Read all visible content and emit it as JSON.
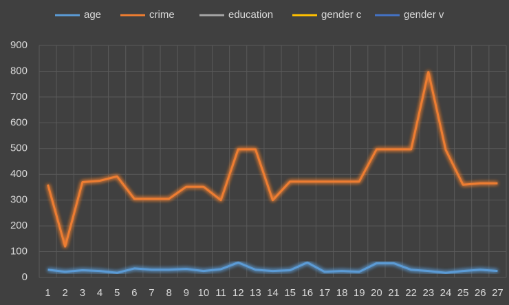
{
  "chart_data": {
    "type": "line",
    "categories": [
      "1",
      "2",
      "3",
      "4",
      "5",
      "6",
      "7",
      "8",
      "9",
      "10",
      "11",
      "12",
      "13",
      "14",
      "15",
      "16",
      "17",
      "18",
      "19",
      "20",
      "21",
      "22",
      "23",
      "24",
      "25",
      "26",
      "27"
    ],
    "series": [
      {
        "name": "age",
        "color": "#5b9bd5",
        "values": [
          30,
          22,
          28,
          25,
          18,
          35,
          30,
          30,
          33,
          25,
          32,
          58,
          30,
          25,
          28,
          58,
          22,
          25,
          22,
          55,
          55,
          30,
          25,
          18,
          25,
          30,
          25
        ]
      },
      {
        "name": "crime",
        "color": "#ed7d31",
        "values": [
          360,
          120,
          370,
          375,
          392,
          305,
          305,
          305,
          352,
          352,
          300,
          497,
          497,
          300,
          372,
          372,
          372,
          372,
          372,
          497,
          497,
          497,
          797,
          495,
          360,
          365,
          365
        ]
      },
      {
        "name": "education",
        "color": "#a5a5a5",
        "values": [
          12,
          12,
          12,
          12,
          12,
          12,
          12,
          12,
          12,
          12,
          12,
          12,
          12,
          12,
          12,
          12,
          12,
          12,
          12,
          12,
          12,
          12,
          12,
          12,
          12,
          12,
          12
        ]
      },
      {
        "name": "gender c",
        "color": "#ffc000",
        "values": [
          1,
          1,
          1,
          1,
          1,
          1,
          1,
          1,
          1,
          1,
          1,
          1,
          1,
          1,
          1,
          1,
          1,
          1,
          1,
          1,
          1,
          1,
          1,
          1,
          1,
          1,
          1
        ]
      },
      {
        "name": "gender v",
        "color": "#4472c4",
        "values": [
          2,
          2,
          2,
          2,
          2,
          2,
          2,
          2,
          2,
          2,
          2,
          2,
          2,
          2,
          2,
          2,
          2,
          2,
          2,
          2,
          2,
          2,
          2,
          2,
          2,
          2,
          2
        ]
      }
    ],
    "ylim": [
      0,
      900
    ],
    "yticks": [
      0,
      100,
      200,
      300,
      400,
      500,
      600,
      700,
      800,
      900
    ],
    "grid": true,
    "legend": "top"
  }
}
